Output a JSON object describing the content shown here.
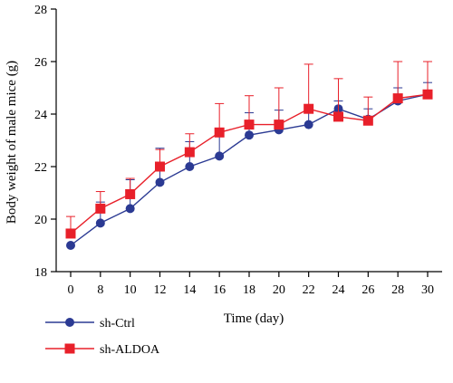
{
  "chart_data": {
    "type": "line",
    "xlabel": "Time (day)",
    "ylabel": "Body weight of male mice (g)",
    "x": [
      0,
      8,
      10,
      12,
      14,
      16,
      18,
      20,
      22,
      24,
      26,
      28,
      30
    ],
    "ylim": [
      18,
      28
    ],
    "yticks": [
      18,
      20,
      22,
      24,
      26,
      28
    ],
    "grid": false,
    "legend_position": "bottom-left",
    "series": [
      {
        "name": "sh-Ctrl",
        "color": "#2b3a93",
        "marker": "circle",
        "values": [
          19.0,
          19.85,
          20.4,
          21.4,
          22.0,
          22.4,
          23.2,
          23.4,
          23.6,
          24.2,
          23.8,
          24.5,
          24.75
        ],
        "errors": [
          0.0,
          0.8,
          1.1,
          1.3,
          0.95,
          0.9,
          0.85,
          0.75,
          0.7,
          0.3,
          0.4,
          0.5,
          0.45
        ]
      },
      {
        "name": "sh-ALDOA",
        "color": "#e8202a",
        "marker": "square",
        "values": [
          19.45,
          20.4,
          20.95,
          22.0,
          22.55,
          23.3,
          23.6,
          23.6,
          24.2,
          23.9,
          23.75,
          24.6,
          24.75
        ],
        "errors": [
          0.65,
          0.65,
          0.6,
          0.65,
          0.7,
          1.1,
          1.1,
          1.4,
          1.7,
          1.45,
          0.9,
          1.4,
          1.25
        ]
      }
    ]
  }
}
